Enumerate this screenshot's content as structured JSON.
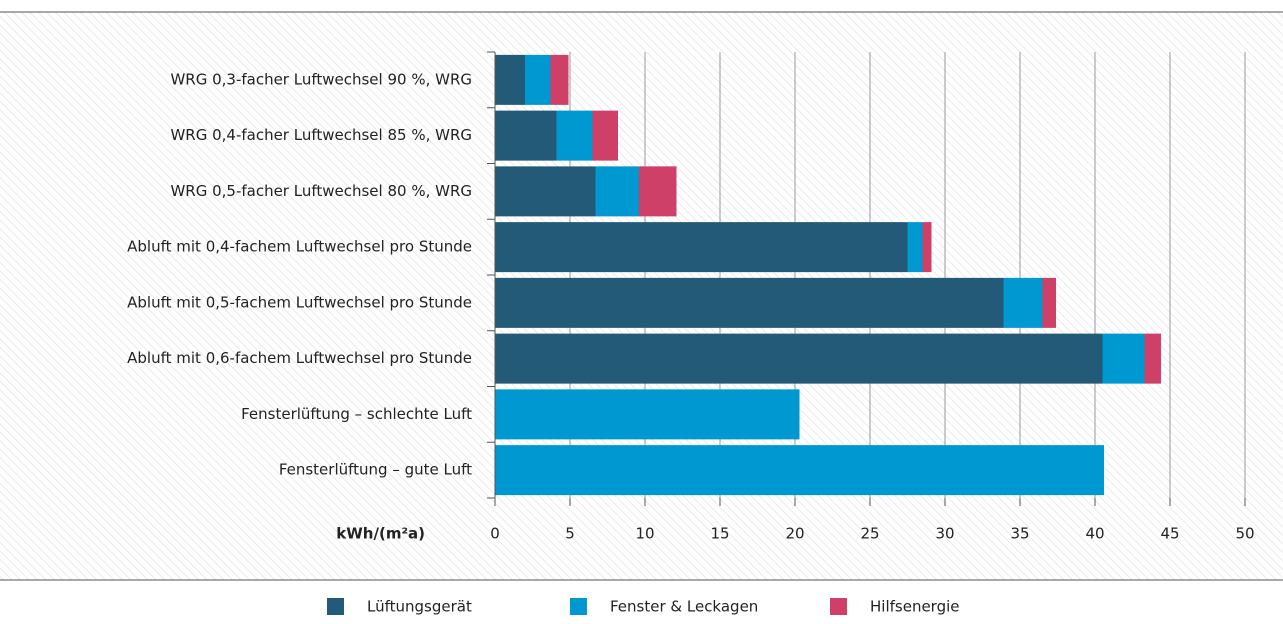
{
  "chart_data": {
    "type": "stacked_barh",
    "categories": [
      "WRG 0,3-facher Luftwechsel 90 %, WRG",
      "WRG 0,4-facher Luftwechsel 85 %, WRG",
      "WRG 0,5-facher Luftwechsel 80 %, WRG",
      "Abluft mit 0,4-fachem Luftwechsel pro Stunde",
      "Abluft mit 0,5-fachem Luftwechsel pro Stunde",
      "Abluft mit 0,6-fachem Luftwechsel pro Stunde",
      "Fensterlüftung – schlechte Luft",
      "Fensterlüftung – gute Luft"
    ],
    "series": [
      {
        "name": "Lüftungsgerät",
        "color": "#235a78",
        "values": [
          2.0,
          4.1,
          6.7,
          27.5,
          33.9,
          40.5,
          0,
          0
        ]
      },
      {
        "name": "Fenster & Leckagen",
        "color": "#0098d0",
        "values": [
          1.7,
          2.4,
          2.9,
          1.0,
          2.6,
          2.8,
          20.3,
          40.6
        ]
      },
      {
        "name": "Hilfsenergie",
        "color": "#cf4068",
        "values": [
          1.2,
          1.7,
          2.5,
          0.6,
          0.9,
          1.1,
          0,
          0
        ]
      }
    ],
    "x_label": "kWh/(m²a)",
    "xlim": [
      0,
      50
    ],
    "xticks": [
      0,
      5,
      10,
      15,
      20,
      25,
      30,
      35,
      40,
      45,
      50
    ],
    "grid": true,
    "legend": "bottom"
  }
}
